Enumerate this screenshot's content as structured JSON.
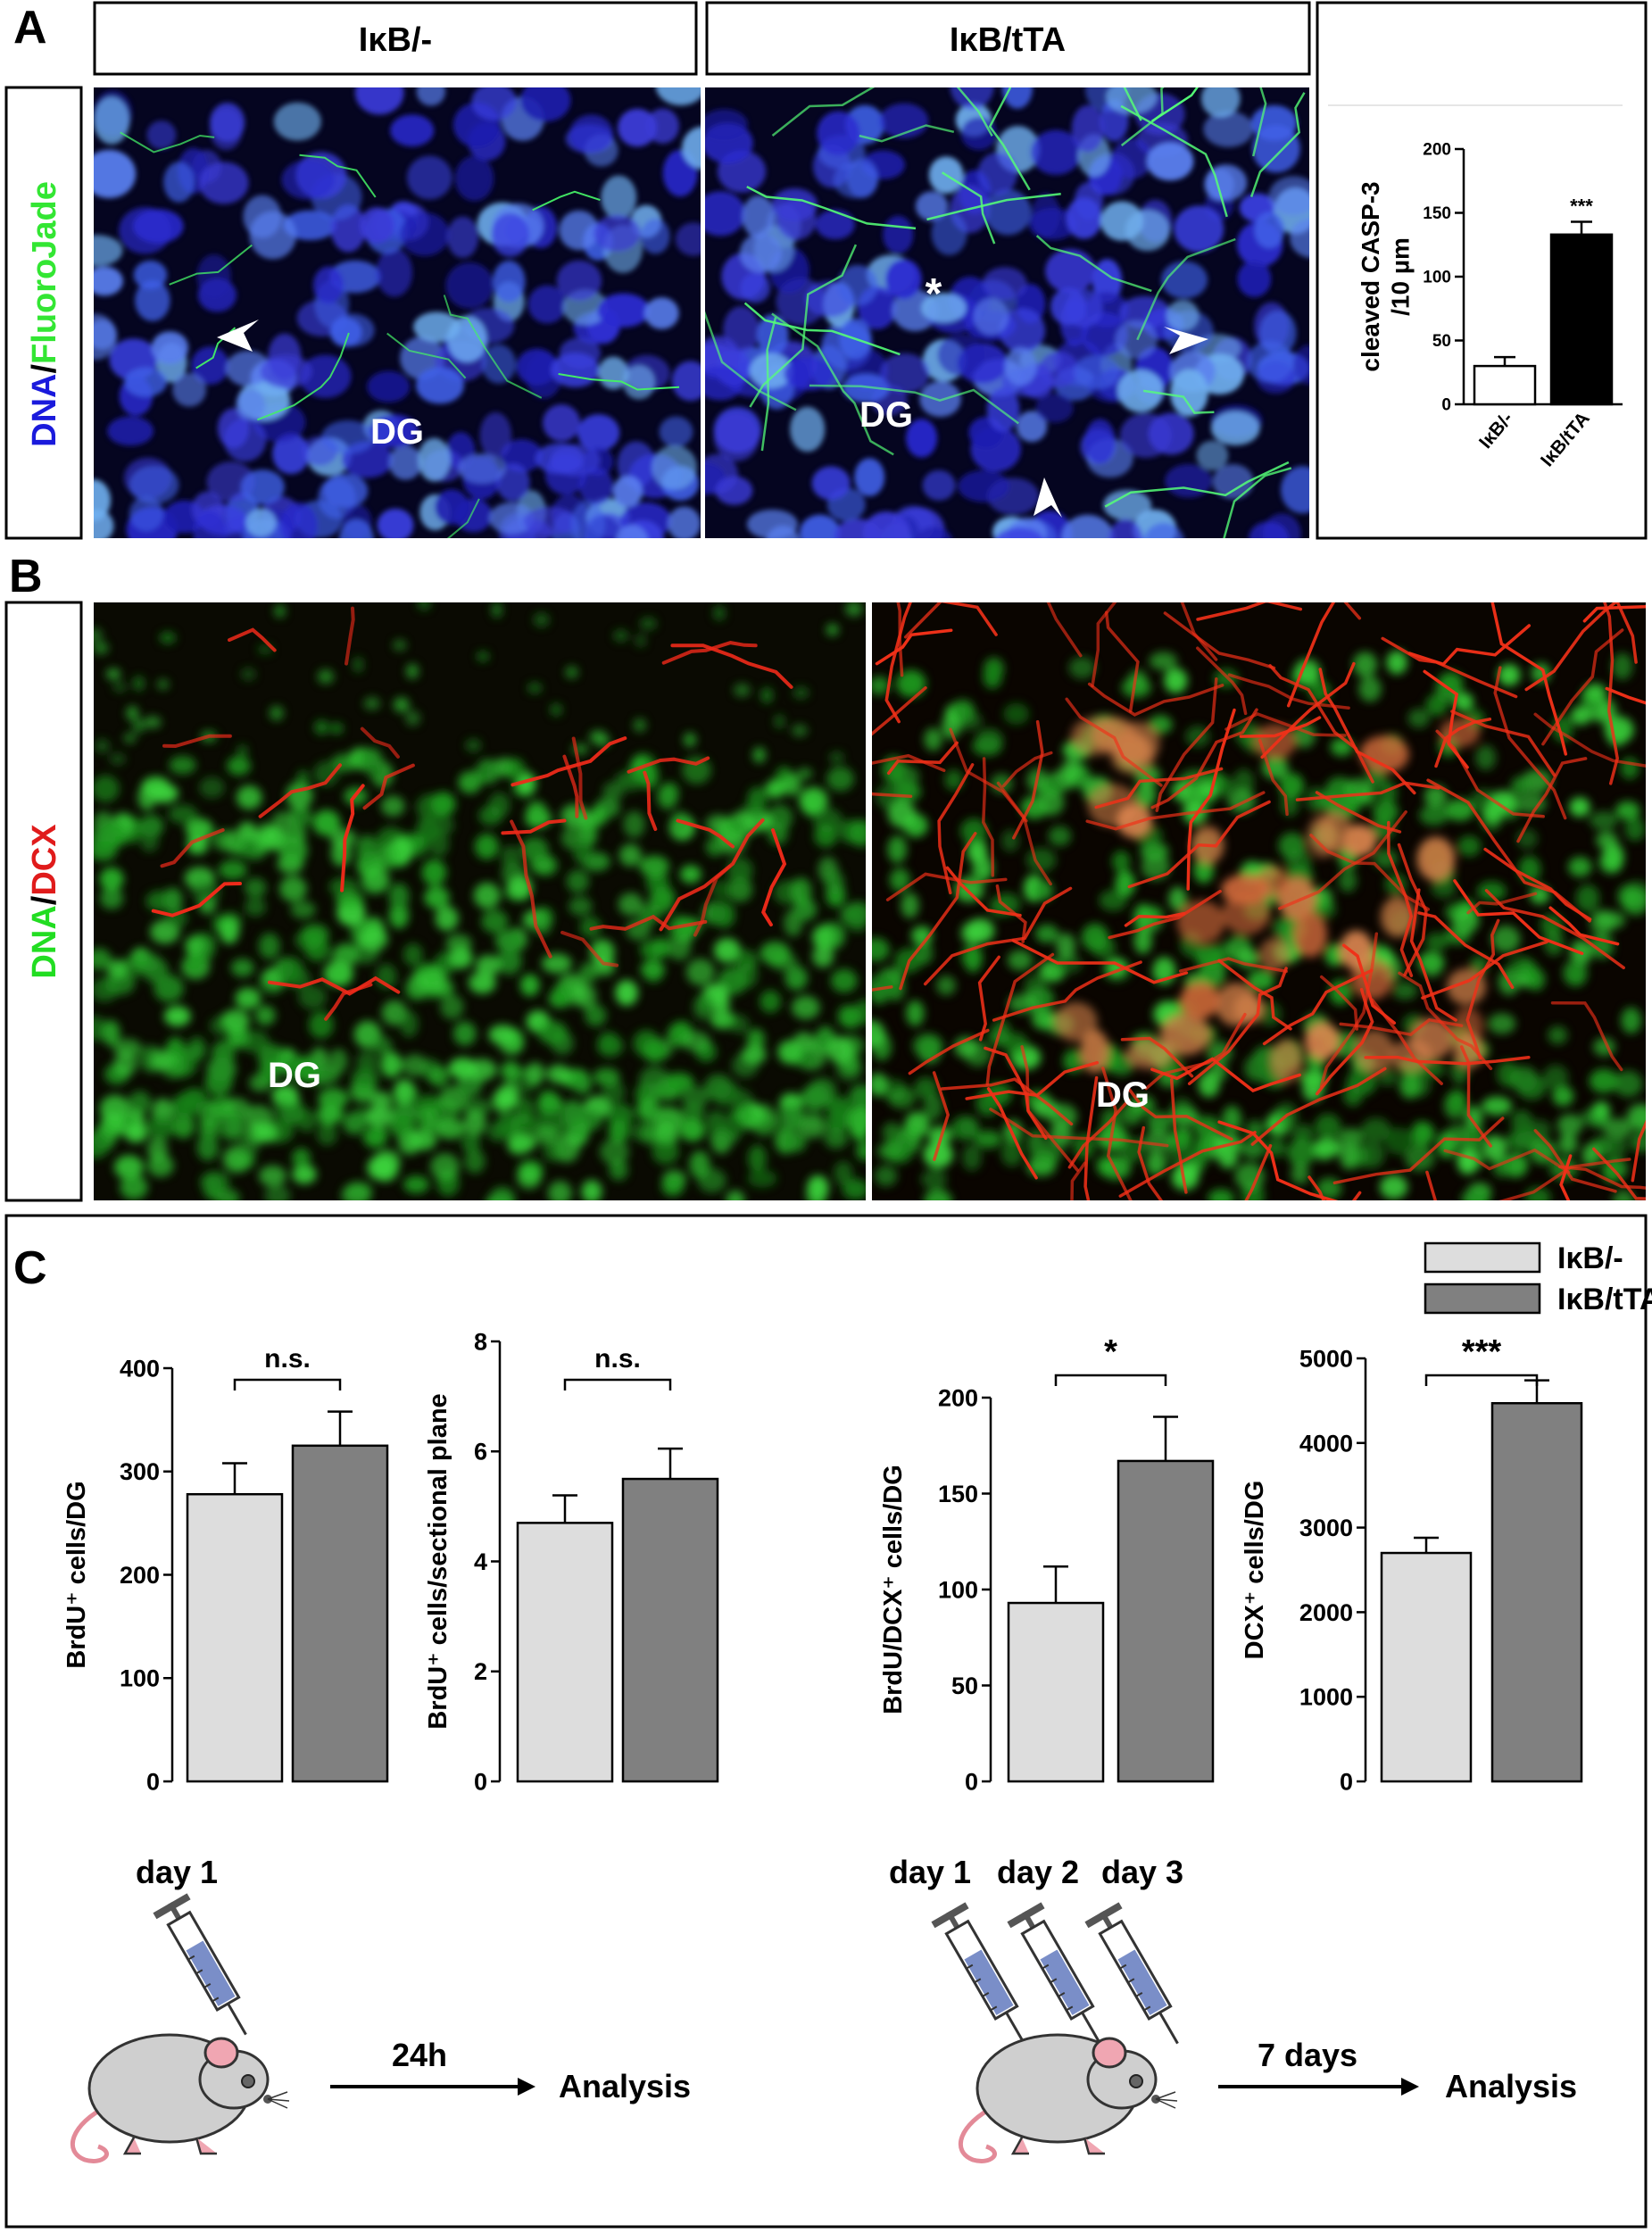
{
  "panel_A": {
    "letter": "A",
    "genotype_labels": [
      "IκB/-",
      "IκB/tTA"
    ],
    "stain_label": {
      "dna": "DNA",
      "sep": "/",
      "marker": "FluoroJade"
    },
    "image_labels": {
      "region": "DG",
      "asterisk": "*"
    },
    "colors": {
      "dna": "#1a1adc",
      "marker": "#33e633"
    }
  },
  "panel_B": {
    "letter": "B",
    "stain_label": {
      "dna": "DNA",
      "sep": "/",
      "marker": "DCX"
    },
    "image_labels": {
      "region": "DG"
    },
    "colors": {
      "dna": "#22dd22",
      "marker": "#e01b1b"
    }
  },
  "panel_C": {
    "letter": "C",
    "legend": [
      "IκB/-",
      "IκB/tTA"
    ],
    "protocol_left": {
      "day": "day 1",
      "interval": "24h",
      "endpoint": "Analysis"
    },
    "protocol_right": {
      "days": [
        "day 1",
        "day 2",
        "day 3"
      ],
      "interval": "7 days",
      "endpoint": "Analysis"
    },
    "colors": {
      "control": "#dddddd",
      "treated": "#808080"
    }
  },
  "chart_data": [
    {
      "id": "A-inset",
      "type": "bar",
      "categories": [
        "IκB/-",
        "IκB/tTA"
      ],
      "values": [
        30,
        133
      ],
      "errors": [
        7,
        10
      ],
      "ylabel_line1": "cleaved CASP-3",
      "ylabel_line2": "/10 µm",
      "yticks": [
        0,
        50,
        100,
        150,
        200
      ],
      "ylim": [
        0,
        200
      ],
      "significance": "***",
      "bar_colors": [
        "#ffffff",
        "#000000"
      ]
    },
    {
      "id": "C1",
      "type": "bar",
      "categories": [
        "IκB/-",
        "IκB/tTA"
      ],
      "values": [
        278,
        325
      ],
      "errors": [
        30,
        33
      ],
      "ylabel": "BrdU⁺ cells/DG",
      "yticks": [
        0,
        100,
        200,
        300,
        400
      ],
      "ylim": [
        0,
        400
      ],
      "significance": "n.s."
    },
    {
      "id": "C2",
      "type": "bar",
      "categories": [
        "IκB/-",
        "IκB/tTA"
      ],
      "values": [
        4.7,
        5.5
      ],
      "errors": [
        0.5,
        0.55
      ],
      "ylabel": "BrdU⁺ cells/sectional plane",
      "yticks": [
        0,
        2,
        4,
        6,
        8
      ],
      "ylim": [
        0,
        8
      ],
      "significance": "n.s."
    },
    {
      "id": "C3",
      "type": "bar",
      "categories": [
        "IκB/-",
        "IκB/tTA"
      ],
      "values": [
        93,
        167
      ],
      "errors": [
        19,
        23
      ],
      "ylabel": "BrdU/DCX⁺ cells/DG",
      "yticks": [
        0,
        50,
        100,
        150,
        200
      ],
      "ylim": [
        0,
        200
      ],
      "significance": "*"
    },
    {
      "id": "C4",
      "type": "bar",
      "categories": [
        "IκB/-",
        "IκB/tTA"
      ],
      "values": [
        2700,
        4470
      ],
      "errors": [
        180,
        270
      ],
      "ylabel": "DCX⁺ cells/DG",
      "yticks": [
        0,
        1000,
        2000,
        3000,
        4000,
        5000
      ],
      "ylim": [
        0,
        5000
      ],
      "significance": "***"
    }
  ]
}
